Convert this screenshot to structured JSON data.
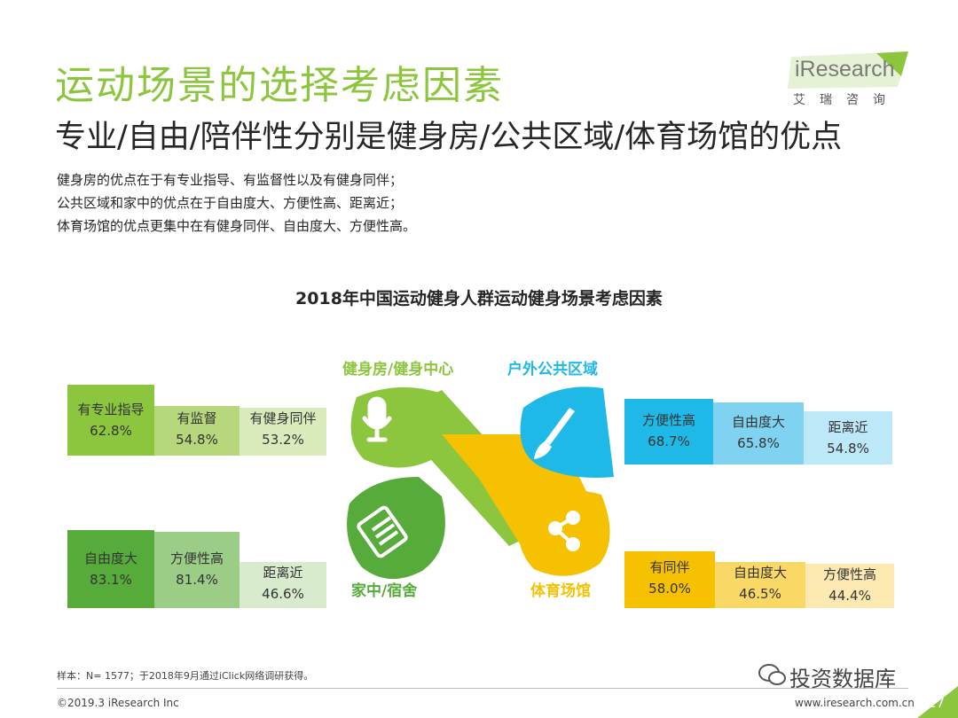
{
  "header": {
    "title": "运动场景的选择考虑因素",
    "subtitle": "专业/自由/陪伴性分别是健身房/公共区域/体育场馆的优点",
    "description": [
      "健身房的优点在于有专业指导、有监督性以及有健身同伴；",
      "公共区域和家中的优点在于自由度大、方便性高、距离近；",
      "体育场馆的优点更集中在有健身同伴、自由度大、方便性高。"
    ]
  },
  "logo": {
    "word": "iResearch",
    "cn": "艾瑞咨询"
  },
  "diagram": {
    "title": "2018年中国运动健身人群运动健身场景考虑因素",
    "groups": {
      "gym": {
        "label": "健身房/健身中心",
        "color": "#8cc63e",
        "icon": "microphone-icon",
        "items": [
          {
            "label": "有专业指导",
            "value": "62.8%",
            "fill": 0.628
          },
          {
            "label": "有监督",
            "value": "54.8%",
            "fill": 0.548
          },
          {
            "label": "有健身同伴",
            "value": "53.2%",
            "fill": 0.532
          }
        ]
      },
      "outdoor": {
        "label": "户外公共区域",
        "color": "#1fb9e8",
        "icon": "paintbrush-icon",
        "items": [
          {
            "label": "方便性高",
            "value": "68.7%",
            "fill": 0.687
          },
          {
            "label": "自由度大",
            "value": "65.8%",
            "fill": 0.658
          },
          {
            "label": "距离近",
            "value": "54.8%",
            "fill": 0.548
          }
        ]
      },
      "home": {
        "label": "家中/宿舍",
        "color": "#56ab3b",
        "icon": "document-icon",
        "items": [
          {
            "label": "自由度大",
            "value": "83.1%",
            "fill": 0.831
          },
          {
            "label": "方便性高",
            "value": "81.4%",
            "fill": 0.814
          },
          {
            "label": "距离近",
            "value": "46.6%",
            "fill": 0.466
          }
        ]
      },
      "stadium": {
        "label": "体育场馆",
        "color": "#f5c100",
        "icon": "share-icon",
        "items": [
          {
            "label": "有同伴",
            "value": "58.0%",
            "fill": 0.58
          },
          {
            "label": "自由度大",
            "value": "46.5%",
            "fill": 0.465
          },
          {
            "label": "方便性高",
            "value": "44.4%",
            "fill": 0.444
          }
        ]
      }
    }
  },
  "footer": {
    "footnote": "样本：N= 1577；于2018年9月通过iClick网络调研获得。",
    "copyright": "©2019.3  iResearch Inc",
    "site": "www.iresearch.com.cn",
    "watermark": "投资数据库",
    "page": "27"
  }
}
